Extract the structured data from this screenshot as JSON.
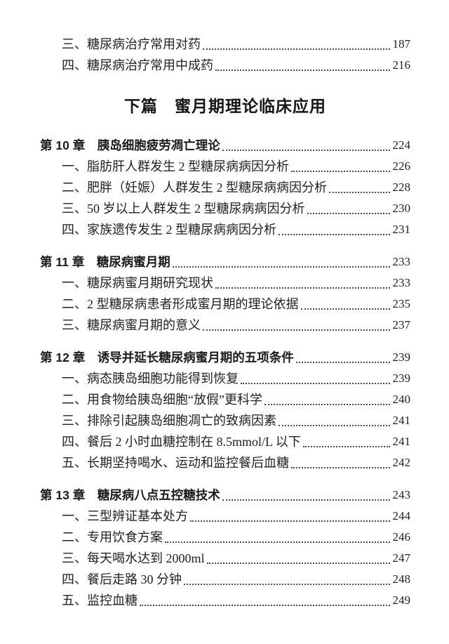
{
  "part_title": "下篇　蜜月期理论临床应用",
  "leading_entries": [
    {
      "label": "三、糖尿病治疗常用对药",
      "page": "187"
    },
    {
      "label": "四、糖尿病治疗常用中成药",
      "page": "216"
    }
  ],
  "chapters": [
    {
      "title": "第 10 章　胰岛细胞疲劳凋亡理论",
      "page": "224",
      "items": [
        {
          "label": "一、脂肪肝人群发生 2 型糖尿病病因分析",
          "page": "226"
        },
        {
          "label": "二、肥胖（妊娠）人群发生 2 型糖尿病病因分析",
          "page": "228"
        },
        {
          "label": "三、50 岁以上人群发生 2 型糖尿病病因分析",
          "page": "230"
        },
        {
          "label": "四、家族遗传发生 2 型糖尿病病因分析",
          "page": "231"
        }
      ]
    },
    {
      "title": "第 11 章　糖尿病蜜月期",
      "page": "233",
      "items": [
        {
          "label": "一、糖尿病蜜月期研究现状",
          "page": "233"
        },
        {
          "label": "二、2 型糖尿病患者形成蜜月期的理论依据",
          "page": "235"
        },
        {
          "label": "三、糖尿病蜜月期的意义",
          "page": "237"
        }
      ]
    },
    {
      "title": "第 12 章　诱导并延长糖尿病蜜月期的五项条件",
      "page": "239",
      "items": [
        {
          "label": "一、病态胰岛细胞功能得到恢复",
          "page": "239"
        },
        {
          "label": "二、用食物给胰岛细胞“放假”更科学",
          "page": "240"
        },
        {
          "label": "三、排除引起胰岛细胞凋亡的致病因素",
          "page": "241"
        },
        {
          "label": "四、餐后 2 小时血糖控制在 8.5mmol/L 以下",
          "page": "241"
        },
        {
          "label": "五、长期坚持喝水、运动和监控餐后血糖",
          "page": "242"
        }
      ]
    },
    {
      "title": "第 13 章　糖尿病八点五控糖技术",
      "page": "243",
      "items": [
        {
          "label": "一、三型辨证基本处方",
          "page": "244"
        },
        {
          "label": "二、专用饮食方案",
          "page": "246"
        },
        {
          "label": "三、每天喝水达到 2000ml",
          "page": "247"
        },
        {
          "label": "四、餐后走路 30 分钟",
          "page": "248"
        },
        {
          "label": "五、监控血糖",
          "page": "249"
        }
      ]
    }
  ]
}
